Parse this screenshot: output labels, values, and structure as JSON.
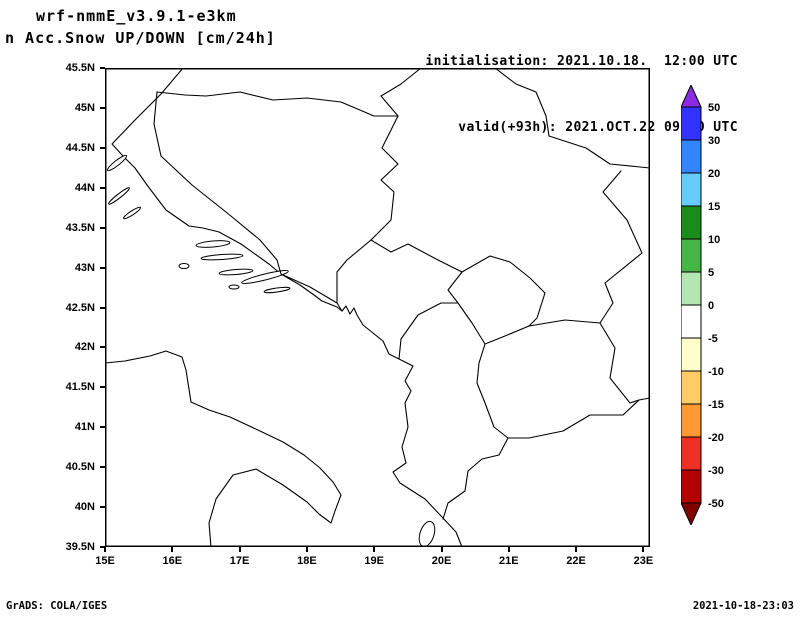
{
  "header": {
    "model_line": "wrf-nmmE_v3.9.1-e3km",
    "product_line": "n Acc.Snow UP/DOWN [cm/24h]",
    "init_line": "initialisation: 2021.10.18.  12:00 UTC",
    "valid_line": "valid(+93h): 2021.OCT.22 09:00 UTC"
  },
  "map": {
    "y_axis_labels": [
      "45.5N",
      "45N",
      "44.5N",
      "44N",
      "43.5N",
      "43N",
      "42.5N",
      "42N",
      "41.5N",
      "41N",
      "40.5N",
      "40N",
      "39.5N"
    ],
    "x_axis_labels": [
      "15E",
      "16E",
      "17E",
      "18E",
      "19E",
      "20E",
      "21E",
      "22E",
      "23E"
    ]
  },
  "colorbar": {
    "levels": [
      "50",
      "30",
      "20",
      "15",
      "10",
      "5",
      "0",
      "-5",
      "-10",
      "-15",
      "-20",
      "-30",
      "-50"
    ],
    "colors": [
      "#3333ff",
      "#3385ff",
      "#66ccff",
      "#1a8c1a",
      "#45b545",
      "#b3e6b3",
      "#ffffff",
      "#ffffcc",
      "#ffcc66",
      "#ff9933",
      "#ee3124",
      "#b30000"
    ],
    "top_arrow_color": "#8a2be2",
    "bottom_arrow_color": "#800000"
  },
  "footer": {
    "left": "GrADS: COLA/IGES",
    "right": "2021-10-18-23:03"
  }
}
